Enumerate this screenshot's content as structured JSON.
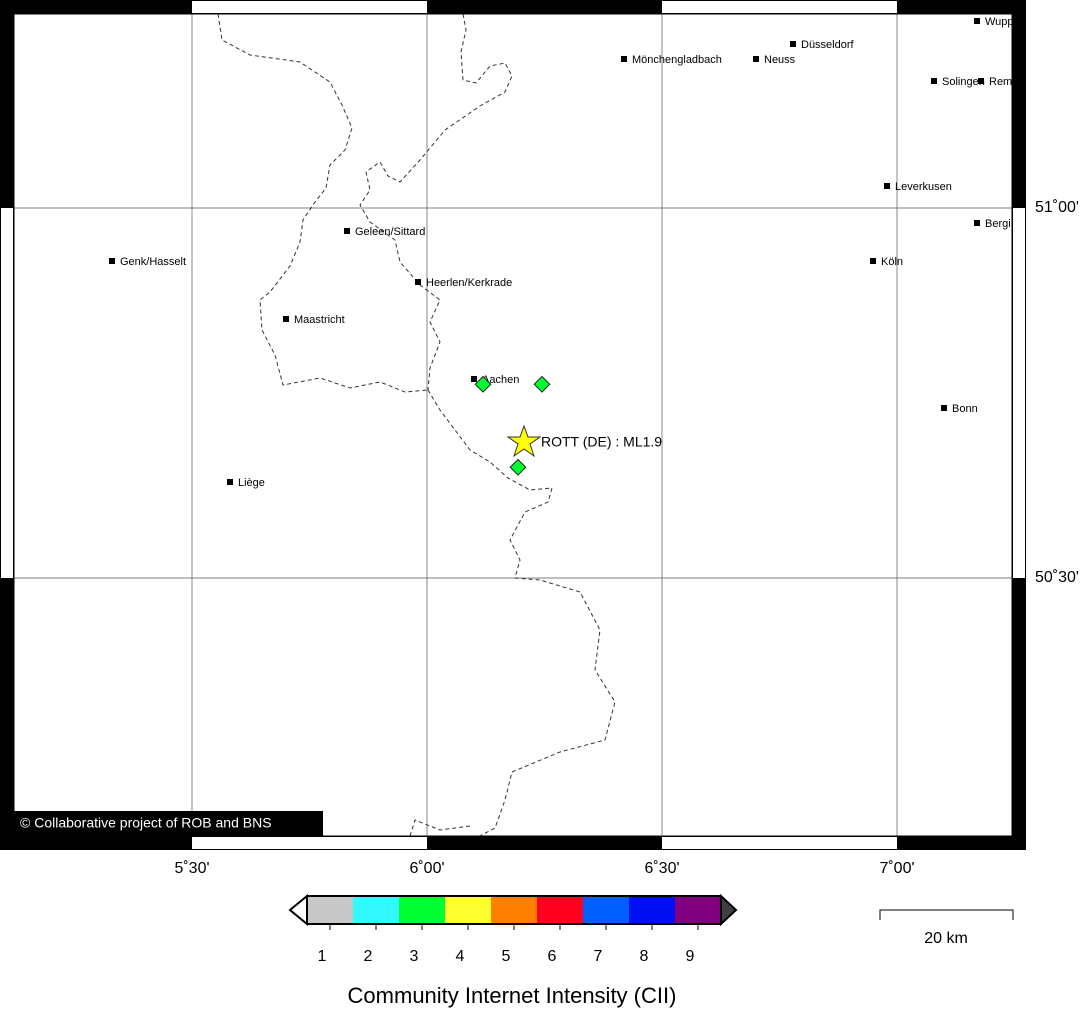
{
  "map": {
    "lon_labels": [
      "5˚30'",
      "6˚00'",
      "6˚30'",
      "7˚00'"
    ],
    "lat_labels": [
      "51˚00'",
      "50˚30'"
    ],
    "cities": [
      "Wupp",
      "Düsseldorf",
      "Mönchengladbach",
      "Neuss",
      "Solingen",
      "Rem",
      "Leverkusen",
      "Bergi",
      "Geleen/Sittard",
      "Genk/Hasselt",
      "Köln",
      "Heerlen/Kerkrade",
      "Maastricht",
      "Aachen",
      "Bonn",
      "Liège"
    ],
    "event_label": "ROTT (DE) : ML1.9",
    "copyright": "© Collaborative project of ROB and BNS"
  },
  "colorbar": {
    "title": "Community Internet Intensity (CII)",
    "ticks": [
      1,
      2,
      3,
      4,
      5,
      6,
      7,
      8,
      9
    ],
    "colors": [
      "#c8c8c8",
      "#32f8ff",
      "#00ff30",
      "#ffff30",
      "#ff8000",
      "#ff0020",
      "#0060ff",
      "#0010f0",
      "#800080"
    ]
  },
  "scale_bar": {
    "label": "20 km"
  }
}
